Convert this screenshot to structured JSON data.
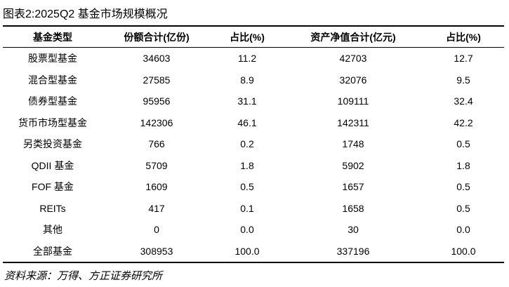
{
  "title": "图表2:2025Q2 基金市场规模概况",
  "table": {
    "header": [
      "基金类型",
      "份额合计(亿份)",
      "占比(%)",
      "资产净值合计(亿元)",
      "占比(%)"
    ],
    "rows": [
      [
        "股票型基金",
        "34603",
        "11.2",
        "42703",
        "12.7"
      ],
      [
        "混合型基金",
        "27585",
        "8.9",
        "32076",
        "9.5"
      ],
      [
        "债券型基金",
        "95956",
        "31.1",
        "109111",
        "32.4"
      ],
      [
        "货币市场型基金",
        "142306",
        "46.1",
        "142311",
        "42.2"
      ],
      [
        "另类投资基金",
        "766",
        "0.2",
        "1748",
        "0.5"
      ],
      [
        "QDII 基金",
        "5709",
        "1.8",
        "5902",
        "1.8"
      ],
      [
        "FOF 基金",
        "1609",
        "0.5",
        "1657",
        "0.5"
      ],
      [
        "REITs",
        "417",
        "0.1",
        "1658",
        "0.5"
      ],
      [
        "其他",
        "0",
        "0.0",
        "30",
        "0.0"
      ],
      [
        "全部基金",
        "308953",
        "100.0",
        "337196",
        "100.0"
      ]
    ]
  },
  "source": "资料来源：万得、方正证券研究所"
}
